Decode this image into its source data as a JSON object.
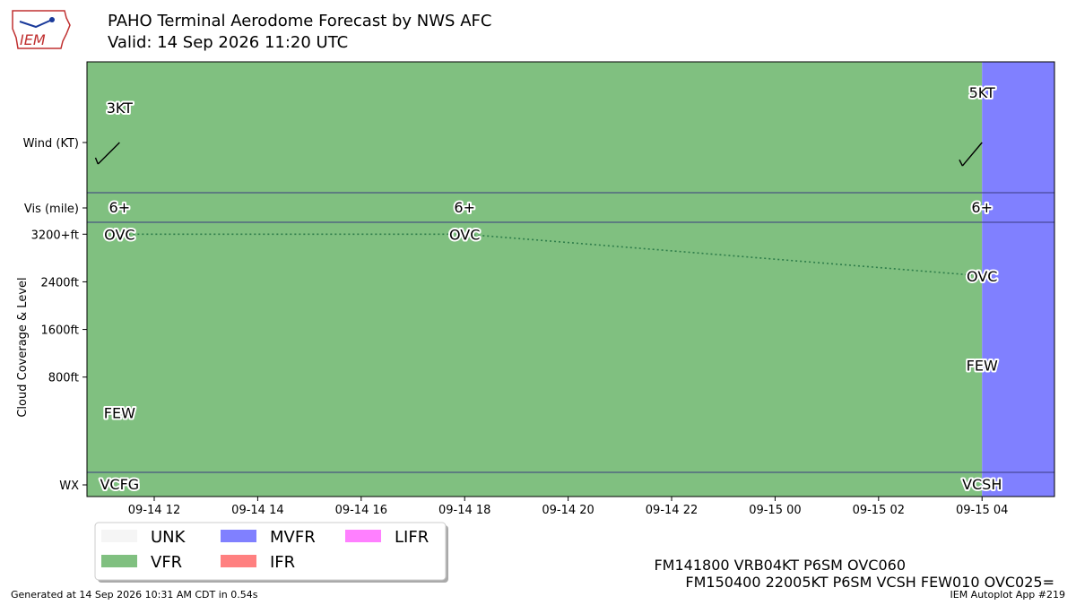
{
  "header": {
    "title": "PAHO Terminal Aerodome Forecast by NWS AFC",
    "subtitle": "Valid: 14 Sep 2026 11:20 UTC",
    "logo_text": "IEM"
  },
  "footer": {
    "generated": "Generated at 14 Sep 2026 10:31 AM CDT in 0.54s",
    "app": "IEM Autoplot App #219"
  },
  "taf_lines": [
    "FM141800 VRB04KT P6SM OVC060",
    "FM150400 22005KT P6SM VCSH FEW010 OVC025="
  ],
  "colors": {
    "UNK": "#f5f5f5",
    "VFR": "#80c080",
    "MVFR": "#8080ff",
    "IFR": "#ff8080",
    "LIFR": "#ff80ff",
    "cloud_line": "#2e7d4a"
  },
  "chart_data": {
    "type": "line",
    "x_ticks": [
      "09-14 12",
      "09-14 14",
      "09-14 16",
      "09-14 18",
      "09-14 20",
      "09-14 22",
      "09-15 00",
      "09-15 02",
      "09-15 04"
    ],
    "x_tick_hours": [
      12,
      14,
      16,
      18,
      20,
      22,
      24,
      26,
      28
    ],
    "x_range_hours": [
      10.7,
      29.4
    ],
    "y_label": "Cloud Coverage & Level",
    "row_labels": {
      "wind": "Wind (KT)",
      "vis": "Vis (mile)",
      "wx": "WX"
    },
    "cloud_ticks": [
      {
        "label": "3200+ft",
        "ft": 3200
      },
      {
        "label": "2400ft",
        "ft": 2400
      },
      {
        "label": "1600ft",
        "ft": 1600
      },
      {
        "label": "800ft",
        "ft": 800
      }
    ],
    "cloud_range_ft": [
      -800,
      3400
    ],
    "category_bands": [
      {
        "category": "VFR",
        "start_hour": 10.7,
        "end_hour": 28.0
      },
      {
        "category": "MVFR",
        "start_hour": 28.0,
        "end_hour": 29.4
      }
    ],
    "forecasts": [
      {
        "hour": 11.33,
        "wind_label": "3KT",
        "wind_speed": 3,
        "wind_dir": 225,
        "vis": "6+",
        "wx": "VCFG",
        "clouds": [
          {
            "cover": "FEW",
            "ft": 200
          },
          {
            "cover": "OVC",
            "ft": 3200
          }
        ]
      },
      {
        "hour": 18.0,
        "wind_label": "",
        "wind_speed": null,
        "wind_dir": null,
        "vis": "6+",
        "wx": "",
        "clouds": [
          {
            "cover": "OVC",
            "ft": 3200
          }
        ]
      },
      {
        "hour": 28.0,
        "wind_label": "5KT",
        "wind_speed": 5,
        "wind_dir": 220,
        "vis": "6+",
        "wx": "VCSH",
        "clouds": [
          {
            "cover": "FEW",
            "ft": 1000
          },
          {
            "cover": "OVC",
            "ft": 2500
          }
        ]
      }
    ],
    "cloud_line_points": [
      {
        "hour": 11.33,
        "ft": 3200
      },
      {
        "hour": 18.0,
        "ft": 3200
      },
      {
        "hour": 28.0,
        "ft": 2500
      }
    ],
    "legend": [
      {
        "key": "UNK",
        "label": "UNK"
      },
      {
        "key": "VFR",
        "label": "VFR"
      },
      {
        "key": "MVFR",
        "label": "MVFR"
      },
      {
        "key": "IFR",
        "label": "IFR"
      },
      {
        "key": "LIFR",
        "label": "LIFR"
      }
    ]
  }
}
